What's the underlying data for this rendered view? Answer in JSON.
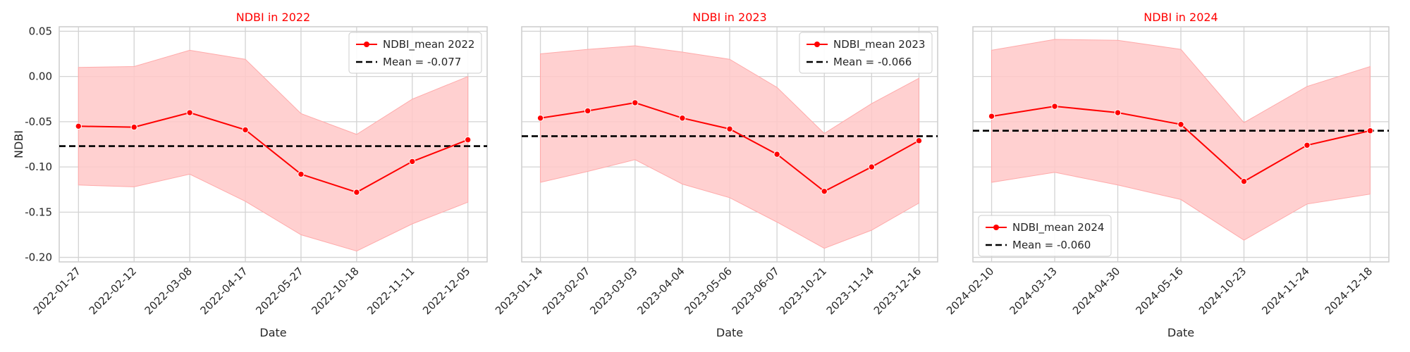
{
  "figure": {
    "colors": {
      "line": "#ff0000",
      "band": "#ffc8c8",
      "mean": "#000000",
      "grid": "#d3d3d3",
      "frame": "#cccccc"
    }
  },
  "chart_data": [
    {
      "type": "line",
      "title": "NDBI in 2022",
      "xlabel": "Date",
      "ylabel": "NDBI",
      "ylim": [
        -0.205,
        0.055
      ],
      "yticks": [
        "0.05",
        "0.00",
        "-0.05",
        "-0.10",
        "-0.15",
        "-0.20"
      ],
      "grid": true,
      "legend_position": "top-right",
      "x": [
        "2022-01-27",
        "2022-02-12",
        "2022-03-08",
        "2022-04-17",
        "2022-05-27",
        "2022-10-18",
        "2022-11-11",
        "2022-12-05"
      ],
      "series": [
        {
          "name": "NDBI_mean 2022",
          "values": [
            -0.055,
            -0.056,
            -0.04,
            -0.059,
            -0.108,
            -0.128,
            -0.094,
            -0.07
          ]
        },
        {
          "name": "Mean = -0.077",
          "value": -0.077
        }
      ],
      "band": {
        "upper": [
          0.01,
          0.011,
          0.029,
          0.019,
          -0.041,
          -0.064,
          -0.025,
          0.0
        ],
        "lower": [
          -0.12,
          -0.122,
          -0.108,
          -0.138,
          -0.175,
          -0.193,
          -0.163,
          -0.139
        ]
      }
    },
    {
      "type": "line",
      "title": "NDBI in 2023",
      "xlabel": "Date",
      "ylabel": "",
      "ylim": [
        -0.205,
        0.055
      ],
      "grid": true,
      "legend_position": "top-right",
      "x": [
        "2023-01-14",
        "2023-02-07",
        "2023-03-03",
        "2023-04-04",
        "2023-05-06",
        "2023-06-07",
        "2023-10-21",
        "2023-11-14",
        "2023-12-16"
      ],
      "series": [
        {
          "name": "NDBI_mean 2023",
          "values": [
            -0.046,
            -0.038,
            -0.029,
            -0.046,
            -0.058,
            -0.086,
            -0.127,
            -0.1,
            -0.071
          ]
        },
        {
          "name": "Mean = -0.066",
          "value": -0.066
        }
      ],
      "band": {
        "upper": [
          0.025,
          0.03,
          0.034,
          0.027,
          0.019,
          -0.012,
          -0.063,
          -0.03,
          -0.002
        ],
        "lower": [
          -0.117,
          -0.105,
          -0.092,
          -0.119,
          -0.134,
          -0.161,
          -0.19,
          -0.17,
          -0.14
        ]
      }
    },
    {
      "type": "line",
      "title": "NDBI in 2024",
      "xlabel": "Date",
      "ylabel": "",
      "ylim": [
        -0.205,
        0.055
      ],
      "grid": true,
      "legend_position": "bottom-left",
      "x": [
        "2024-02-10",
        "2024-03-13",
        "2024-04-30",
        "2024-05-16",
        "2024-10-23",
        "2024-11-24",
        "2024-12-18"
      ],
      "series": [
        {
          "name": "NDBI_mean 2024",
          "values": [
            -0.044,
            -0.033,
            -0.04,
            -0.053,
            -0.116,
            -0.076,
            -0.06
          ]
        },
        {
          "name": "Mean = -0.060",
          "value": -0.06
        }
      ],
      "band": {
        "upper": [
          0.029,
          0.041,
          0.04,
          0.03,
          -0.051,
          -0.011,
          0.011
        ],
        "lower": [
          -0.117,
          -0.106,
          -0.12,
          -0.136,
          -0.181,
          -0.141,
          -0.13
        ]
      }
    }
  ]
}
